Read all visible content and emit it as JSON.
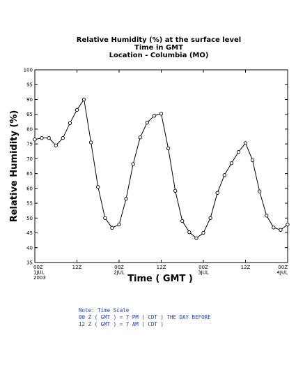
{
  "chart_data": {
    "type": "line",
    "title_lines": [
      "Relative Humidity (%) at the surface level",
      "Time in GMT",
      "Location - Columbia (MO)"
    ],
    "xlabel": "Time ( GMT )",
    "ylabel": "Relative Humidity (%)",
    "ylim": [
      35,
      100
    ],
    "yticks": [
      35,
      40,
      45,
      50,
      55,
      60,
      65,
      70,
      75,
      80,
      85,
      90,
      95,
      100
    ],
    "xlim": [
      0,
      72
    ],
    "xticks": [
      {
        "hour": 0,
        "lines": [
          "00Z",
          "1JUL",
          "2003"
        ]
      },
      {
        "hour": 12,
        "lines": [
          "12Z"
        ]
      },
      {
        "hour": 24,
        "lines": [
          "00Z",
          "2JUL"
        ]
      },
      {
        "hour": 36,
        "lines": [
          "12Z"
        ]
      },
      {
        "hour": 48,
        "lines": [
          "00Z",
          "3JUL"
        ]
      },
      {
        "hour": 60,
        "lines": [
          "12Z"
        ]
      },
      {
        "hour": 72,
        "lines": [
          "00Z",
          "4JUL"
        ]
      }
    ],
    "series": [
      {
        "x": [
          0,
          2,
          4,
          6,
          8,
          10,
          12,
          14,
          16,
          18,
          20,
          22,
          24,
          26,
          28,
          30,
          32,
          34,
          36,
          38,
          40,
          42,
          44,
          46,
          48,
          50,
          52,
          54,
          56,
          58,
          60,
          62,
          64,
          66,
          68,
          70,
          72
        ],
        "y": [
          76.5,
          77,
          77,
          74.5,
          77,
          82,
          86.5,
          90,
          75.5,
          60.5,
          50,
          46.7,
          47.8,
          56.5,
          68.2,
          77.2,
          82.2,
          84.5,
          85.2,
          73.5,
          59.2,
          49,
          45.2,
          43.2,
          45,
          50,
          58.5,
          64.5,
          68.5,
          72.3,
          75.3,
          69.5,
          59,
          50.8,
          46.8,
          46,
          47.8
        ]
      }
    ],
    "grid": false,
    "marker": "open-circle",
    "line_color": "#000000"
  },
  "note": {
    "lines": [
      "Note: Time Scale",
      "00 Z ( GMT ) = 7 PM ( CDT ) THE DAY BEFORE",
      "12 Z ( GMT ) = 7 AM ( CDT )"
    ]
  }
}
